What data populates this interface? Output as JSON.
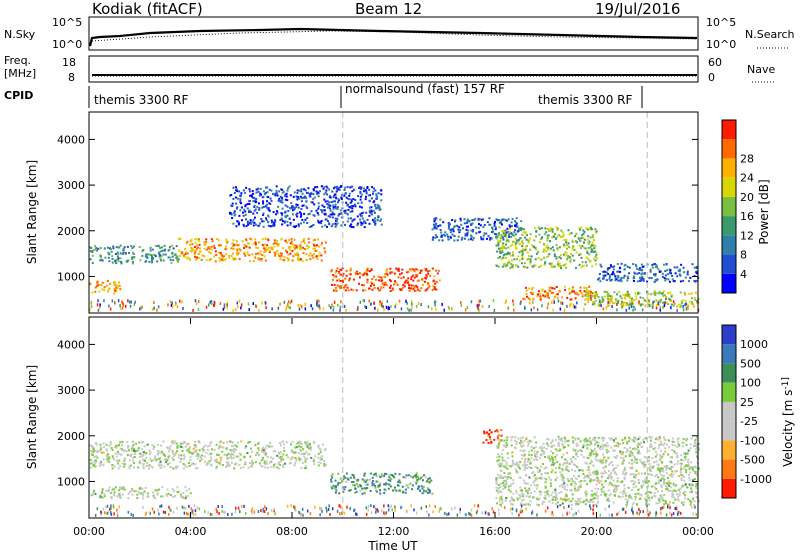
{
  "header": {
    "station": "Kodiak (fitACF)",
    "beam": "Beam 12",
    "date": "19/Jul/2016"
  },
  "params": {
    "nsky_label": "N.Sky",
    "nsearch_label": "N.Search",
    "nsky_ticks": [
      "10^5",
      "10^0"
    ],
    "nsearch_ticks": [
      "10^5",
      "10^0"
    ],
    "freq_label_1": "Freq.",
    "freq_label_2": "[MHz]",
    "freq_ticks": [
      "18",
      "8"
    ],
    "nave_label": "Nave",
    "nave_ticks": [
      "60",
      "0"
    ],
    "cpid_label": "CPID",
    "cpid_segments": [
      {
        "text": "themis 3300 RF"
      },
      {
        "text": "normalsound (fast) 157 RF"
      },
      {
        "text": "themis 3300 RF"
      }
    ]
  },
  "chart_data": [
    {
      "type": "heatmap",
      "name": "power",
      "ylabel": "Slant Range [km]",
      "ylim": [
        200,
        4600
      ],
      "yticks": [
        "1000",
        "2000",
        "3000",
        "4000"
      ],
      "xlim_hours": [
        0,
        24
      ],
      "colorbar_label": "Power [dB]",
      "colorbar_ticks": [
        "4",
        "8",
        "12",
        "16",
        "20",
        "24",
        "28"
      ],
      "colorbar_colors": [
        "#0000ff",
        "#1f4fd0",
        "#2f7fa8",
        "#3a9a6e",
        "#7ac040",
        "#d8d800",
        "#ffb000",
        "#ff6a00",
        "#ff1a00"
      ],
      "features": [
        {
          "t0": 0.0,
          "t1": 1.2,
          "r0": 650,
          "r1": 950,
          "level": 0.75
        },
        {
          "t0": 0.0,
          "t1": 3.5,
          "r0": 1300,
          "r1": 1700,
          "level": 0.35
        },
        {
          "t0": 3.5,
          "t1": 9.3,
          "r0": 1350,
          "r1": 1850,
          "level": 0.75
        },
        {
          "t0": 9.5,
          "t1": 13.8,
          "r0": 700,
          "r1": 1200,
          "level": 0.9
        },
        {
          "t0": 5.5,
          "t1": 11.5,
          "r0": 2100,
          "r1": 3000,
          "level": 0.15
        },
        {
          "t0": 13.5,
          "t1": 17.0,
          "r0": 1800,
          "r1": 2300,
          "level": 0.2
        },
        {
          "t0": 16.0,
          "t1": 20.0,
          "r0": 1200,
          "r1": 2100,
          "level": 0.5
        },
        {
          "t0": 17.0,
          "t1": 20.0,
          "r0": 500,
          "r1": 800,
          "level": 0.8
        },
        {
          "t0": 19.5,
          "t1": 24.0,
          "r0": 350,
          "r1": 700,
          "level": 0.55
        },
        {
          "t0": 20.0,
          "t1": 24.0,
          "r0": 900,
          "r1": 1300,
          "level": 0.2
        }
      ]
    },
    {
      "type": "heatmap",
      "name": "velocity",
      "ylabel": "Slant Range [km]",
      "ylim": [
        200,
        4600
      ],
      "yticks": [
        "1000",
        "2000",
        "3000",
        "4000"
      ],
      "xlabel": "Time UT",
      "xticks": [
        "00:00",
        "04:00",
        "08:00",
        "12:00",
        "16:00",
        "20:00",
        "00:00"
      ],
      "xlim_hours": [
        0,
        24
      ],
      "colorbar_label": "Velocity [m s^-1]",
      "colorbar_ticks": [
        "1000",
        "500",
        "100",
        "25",
        "-25",
        "-100",
        "-500",
        "-1000"
      ],
      "colorbar_colors": [
        "#2a3ec8",
        "#3a7ab8",
        "#3e8e5a",
        "#7acc3a",
        "#c8c8c8",
        "#c8c8c8",
        "#ffb030",
        "#ff7a10",
        "#ff1a00"
      ],
      "features": [
        {
          "t0": 0.0,
          "t1": 9.3,
          "r0": 1300,
          "r1": 1900,
          "level": 0.5
        },
        {
          "t0": 0.0,
          "t1": 4.0,
          "r0": 650,
          "r1": 900,
          "level": 0.5
        },
        {
          "t0": 9.5,
          "t1": 13.5,
          "r0": 750,
          "r1": 1200,
          "level": 0.3
        },
        {
          "t0": 15.5,
          "t1": 16.3,
          "r0": 1850,
          "r1": 2150,
          "level": 0.95
        },
        {
          "t0": 16.0,
          "t1": 24.0,
          "r0": 500,
          "r1": 2000,
          "level": 0.5
        }
      ]
    }
  ]
}
